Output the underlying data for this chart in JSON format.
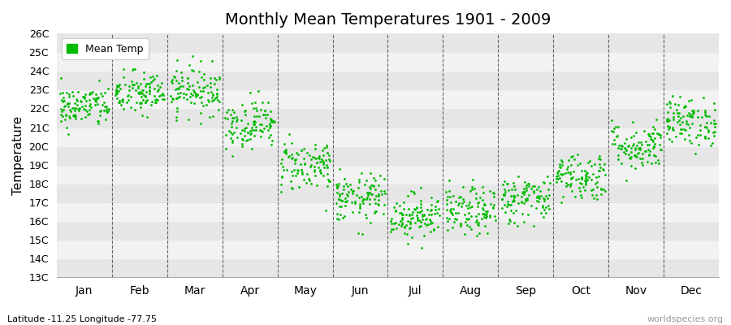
{
  "title": "Monthly Mean Temperatures 1901 - 2009",
  "ylabel": "Temperature",
  "subtitle": "Latitude -11.25 Longitude -77.75",
  "watermark": "worldspecies.org",
  "legend_label": "Mean Temp",
  "dot_color": "#00bb00",
  "background_color": "#f2f2f2",
  "stripe_colors": [
    "#e6e6e6",
    "#f2f2f2"
  ],
  "ytick_labels": [
    "13C",
    "14C",
    "15C",
    "16C",
    "17C",
    "18C",
    "19C",
    "20C",
    "21C",
    "22C",
    "23C",
    "24C",
    "25C",
    "26C"
  ],
  "ytick_values": [
    13,
    14,
    15,
    16,
    17,
    18,
    19,
    20,
    21,
    22,
    23,
    24,
    25,
    26
  ],
  "ylim": [
    13,
    26
  ],
  "months": [
    "Jan",
    "Feb",
    "Mar",
    "Apr",
    "May",
    "Jun",
    "Jul",
    "Aug",
    "Sep",
    "Oct",
    "Nov",
    "Dec"
  ],
  "mean_temps": [
    22.1,
    22.8,
    23.0,
    21.2,
    19.0,
    17.2,
    16.3,
    16.5,
    17.2,
    18.4,
    20.0,
    21.3
  ],
  "std_temps": [
    0.55,
    0.6,
    0.65,
    0.65,
    0.7,
    0.65,
    0.6,
    0.65,
    0.65,
    0.65,
    0.65,
    0.65
  ],
  "n_years": 109,
  "seed": 42,
  "marker_size": 4,
  "title_fontsize": 14,
  "axis_fontsize": 10,
  "ytick_fontsize": 9,
  "ylabel_fontsize": 11
}
